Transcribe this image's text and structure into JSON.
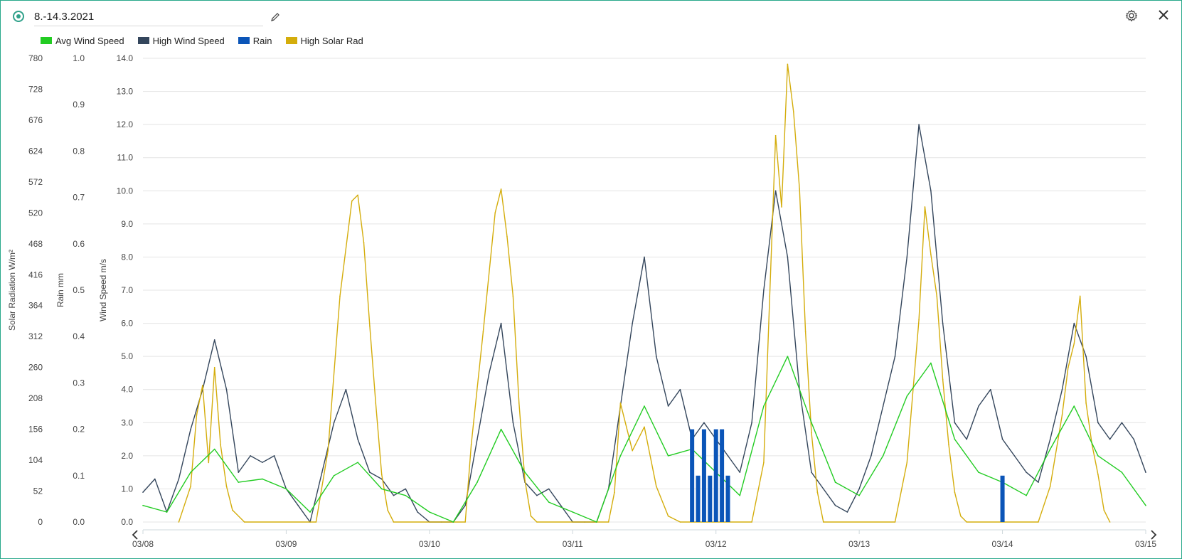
{
  "header": {
    "title": "8.-14.3.2021",
    "edit_icon": "pencil-icon",
    "settings_icon": "gear-icon",
    "close_icon": "close-icon",
    "accent_color": "#2fa18a"
  },
  "legend": [
    {
      "label": "Avg Wind Speed",
      "color": "#22cc22"
    },
    {
      "label": "High Wind Speed",
      "color": "#34465c"
    },
    {
      "label": "Rain",
      "color": "#0b55b8"
    },
    {
      "label": "High Solar Rad",
      "color": "#d4ad0c"
    }
  ],
  "nav": {
    "prev_icon": "chevron-left-icon",
    "next_icon": "chevron-right-icon"
  },
  "chart_data": {
    "type": "line",
    "x_ticks": [
      "03/08",
      "03/09",
      "03/10",
      "03/11",
      "03/12",
      "03/13",
      "03/14",
      "03/15"
    ],
    "x_domain": [
      "2021-03-08 00:00",
      "2021-03-15 00:00"
    ],
    "y_axes": [
      {
        "title": "Solar Radiation W/m²",
        "range": [
          0,
          780
        ],
        "ticks": [
          "780",
          "728",
          "676",
          "624",
          "572",
          "520",
          "468",
          "416",
          "364",
          "312",
          "260",
          "208",
          "156",
          "104",
          "52",
          "0"
        ]
      },
      {
        "title": "Rain mm",
        "range": [
          0,
          1.0
        ],
        "ticks": [
          "1.0",
          "0.9",
          "0.8",
          "0.7",
          "0.6",
          "0.5",
          "0.4",
          "0.3",
          "0.2",
          "0.1",
          "0.0"
        ]
      },
      {
        "title": "Wind Speed m/s",
        "range": [
          0,
          14.0
        ],
        "ticks": [
          "14.0",
          "13.0",
          "12.0",
          "11.0",
          "10.0",
          "9.0",
          "8.0",
          "7.0",
          "6.0",
          "5.0",
          "4.0",
          "3.0",
          "2.0",
          "1.0",
          "0.0"
        ]
      }
    ],
    "grid": true,
    "legend_position": "top-left",
    "series": [
      {
        "name": "Avg Wind Speed",
        "axis": "Wind Speed m/s",
        "color": "#22cc22",
        "x": [
          "03/08 00:00",
          "03/08 04:00",
          "03/08 08:00",
          "03/08 12:00",
          "03/08 16:00",
          "03/08 20:00",
          "03/09 00:00",
          "03/09 04:00",
          "03/09 08:00",
          "03/09 12:00",
          "03/09 16:00",
          "03/09 20:00",
          "03/10 00:00",
          "03/10 04:00",
          "03/10 08:00",
          "03/10 12:00",
          "03/10 16:00",
          "03/10 20:00",
          "03/11 00:00",
          "03/11 04:00",
          "03/11 08:00",
          "03/11 12:00",
          "03/11 16:00",
          "03/11 20:00",
          "03/12 00:00",
          "03/12 04:00",
          "03/12 08:00",
          "03/12 12:00",
          "03/12 16:00",
          "03/12 20:00",
          "03/13 00:00",
          "03/13 04:00",
          "03/13 08:00",
          "03/13 12:00",
          "03/13 16:00",
          "03/13 20:00",
          "03/14 00:00",
          "03/14 04:00",
          "03/14 08:00",
          "03/14 12:00",
          "03/14 16:00",
          "03/14 20:00",
          "03/15 00:00"
        ],
        "values": [
          0.5,
          0.3,
          1.5,
          2.2,
          1.2,
          1.3,
          1.0,
          0.3,
          1.4,
          1.8,
          1.0,
          0.8,
          0.3,
          0.0,
          1.2,
          2.8,
          1.5,
          0.6,
          0.3,
          0.0,
          2.0,
          3.5,
          2.0,
          2.2,
          1.5,
          0.8,
          3.5,
          5.0,
          3.0,
          1.2,
          0.8,
          2.0,
          3.8,
          4.8,
          2.5,
          1.5,
          1.2,
          0.8,
          2.2,
          3.5,
          2.0,
          1.5,
          0.5
        ]
      },
      {
        "name": "High Wind Speed",
        "axis": "Wind Speed m/s",
        "color": "#34465c",
        "x": [
          "03/08 00:00",
          "03/08 02:00",
          "03/08 04:00",
          "03/08 06:00",
          "03/08 08:00",
          "03/08 10:00",
          "03/08 12:00",
          "03/08 14:00",
          "03/08 16:00",
          "03/08 18:00",
          "03/08 20:00",
          "03/08 22:00",
          "03/09 00:00",
          "03/09 02:00",
          "03/09 04:00",
          "03/09 06:00",
          "03/09 08:00",
          "03/09 10:00",
          "03/09 12:00",
          "03/09 14:00",
          "03/09 16:00",
          "03/09 18:00",
          "03/09 20:00",
          "03/09 22:00",
          "03/10 00:00",
          "03/10 02:00",
          "03/10 04:00",
          "03/10 06:00",
          "03/10 08:00",
          "03/10 10:00",
          "03/10 12:00",
          "03/10 14:00",
          "03/10 16:00",
          "03/10 18:00",
          "03/10 20:00",
          "03/10 22:00",
          "03/11 00:00",
          "03/11 02:00",
          "03/11 04:00",
          "03/11 06:00",
          "03/11 08:00",
          "03/11 10:00",
          "03/11 12:00",
          "03/11 14:00",
          "03/11 16:00",
          "03/11 18:00",
          "03/11 20:00",
          "03/11 22:00",
          "03/12 00:00",
          "03/12 02:00",
          "03/12 04:00",
          "03/12 06:00",
          "03/12 08:00",
          "03/12 10:00",
          "03/12 12:00",
          "03/12 14:00",
          "03/12 16:00",
          "03/12 18:00",
          "03/12 20:00",
          "03/12 22:00",
          "03/13 00:00",
          "03/13 02:00",
          "03/13 04:00",
          "03/13 06:00",
          "03/13 08:00",
          "03/13 10:00",
          "03/13 12:00",
          "03/13 14:00",
          "03/13 16:00",
          "03/13 18:00",
          "03/13 20:00",
          "03/13 22:00",
          "03/14 00:00",
          "03/14 02:00",
          "03/14 04:00",
          "03/14 06:00",
          "03/14 08:00",
          "03/14 10:00",
          "03/14 12:00",
          "03/14 14:00",
          "03/14 16:00",
          "03/14 18:00",
          "03/14 20:00",
          "03/14 22:00",
          "03/15 00:00"
        ],
        "values": [
          0.9,
          1.3,
          0.3,
          1.3,
          2.8,
          4.0,
          5.5,
          4.0,
          1.5,
          2.0,
          1.8,
          2.0,
          1.0,
          0.5,
          0.0,
          1.5,
          3.0,
          4.0,
          2.5,
          1.5,
          1.3,
          0.8,
          1.0,
          0.3,
          0.0,
          0.0,
          0.0,
          0.5,
          2.5,
          4.5,
          6.0,
          3.0,
          1.2,
          0.8,
          1.0,
          0.5,
          0.0,
          0.0,
          0.0,
          1.0,
          3.5,
          6.0,
          8.0,
          5.0,
          3.5,
          4.0,
          2.5,
          3.0,
          2.5,
          2.0,
          1.5,
          3.0,
          7.0,
          10.0,
          8.0,
          4.0,
          1.5,
          1.0,
          0.5,
          0.3,
          1.0,
          2.0,
          3.5,
          5.0,
          8.0,
          12.0,
          10.0,
          6.0,
          3.0,
          2.5,
          3.5,
          4.0,
          2.5,
          2.0,
          1.5,
          1.2,
          2.5,
          4.0,
          6.0,
          5.0,
          3.0,
          2.5,
          3.0,
          2.5,
          1.5
        ]
      },
      {
        "name": "Rain",
        "axis": "Rain mm",
        "color": "#0b55b8",
        "x": [
          "03/11 20:00",
          "03/11 21:00",
          "03/11 22:00",
          "03/11 23:00",
          "03/12 00:00",
          "03/12 01:00",
          "03/12 02:00",
          "03/14 00:00"
        ],
        "values": [
          0.2,
          0.1,
          0.2,
          0.1,
          0.2,
          0.2,
          0.1,
          0.1
        ]
      },
      {
        "name": "High Solar Rad",
        "axis": "Solar Radiation W/m²",
        "color": "#d4ad0c",
        "x": [
          "03/08 06:00",
          "03/08 08:00",
          "03/08 09:00",
          "03/08 10:00",
          "03/08 11:00",
          "03/08 12:00",
          "03/08 13:00",
          "03/08 14:00",
          "03/08 15:00",
          "03/08 17:00",
          "03/09 05:00",
          "03/09 07:00",
          "03/09 09:00",
          "03/09 11:00",
          "03/09 12:00",
          "03/09 13:00",
          "03/09 14:00",
          "03/09 15:00",
          "03/09 16:00",
          "03/09 17:00",
          "03/09 18:00",
          "03/10 06:00",
          "03/10 07:00",
          "03/10 09:00",
          "03/10 11:00",
          "03/10 12:00",
          "03/10 13:00",
          "03/10 14:00",
          "03/10 15:00",
          "03/10 16:00",
          "03/10 17:00",
          "03/10 18:00",
          "03/11 06:00",
          "03/11 07:00",
          "03/11 08:00",
          "03/11 10:00",
          "03/11 12:00",
          "03/11 14:00",
          "03/11 16:00",
          "03/11 18:00",
          "03/12 06:00",
          "03/12 08:00",
          "03/12 09:00",
          "03/12 10:00",
          "03/12 11:00",
          "03/12 12:00",
          "03/12 13:00",
          "03/12 14:00",
          "03/12 15:00",
          "03/12 16:00",
          "03/12 17:00",
          "03/12 18:00",
          "03/13 06:00",
          "03/13 08:00",
          "03/13 10:00",
          "03/13 11:00",
          "03/13 12:00",
          "03/13 13:00",
          "03/13 14:00",
          "03/13 15:00",
          "03/13 16:00",
          "03/13 17:00",
          "03/13 18:00",
          "03/14 06:00",
          "03/14 08:00",
          "03/14 10:00",
          "03/14 11:00",
          "03/14 12:00",
          "03/14 13:00",
          "03/14 14:00",
          "03/14 15:00",
          "03/14 16:00",
          "03/14 17:00",
          "03/14 18:00"
        ],
        "values": [
          0,
          60,
          180,
          230,
          100,
          260,
          130,
          60,
          20,
          0,
          0,
          120,
          380,
          540,
          550,
          470,
          330,
          200,
          80,
          20,
          0,
          0,
          130,
          320,
          520,
          560,
          480,
          380,
          200,
          70,
          10,
          0,
          0,
          50,
          200,
          120,
          160,
          60,
          10,
          0,
          0,
          100,
          380,
          650,
          530,
          770,
          690,
          560,
          320,
          150,
          50,
          0,
          0,
          100,
          340,
          530,
          450,
          380,
          240,
          130,
          50,
          10,
          0,
          0,
          60,
          180,
          260,
          300,
          380,
          200,
          130,
          80,
          20,
          0
        ]
      }
    ]
  }
}
